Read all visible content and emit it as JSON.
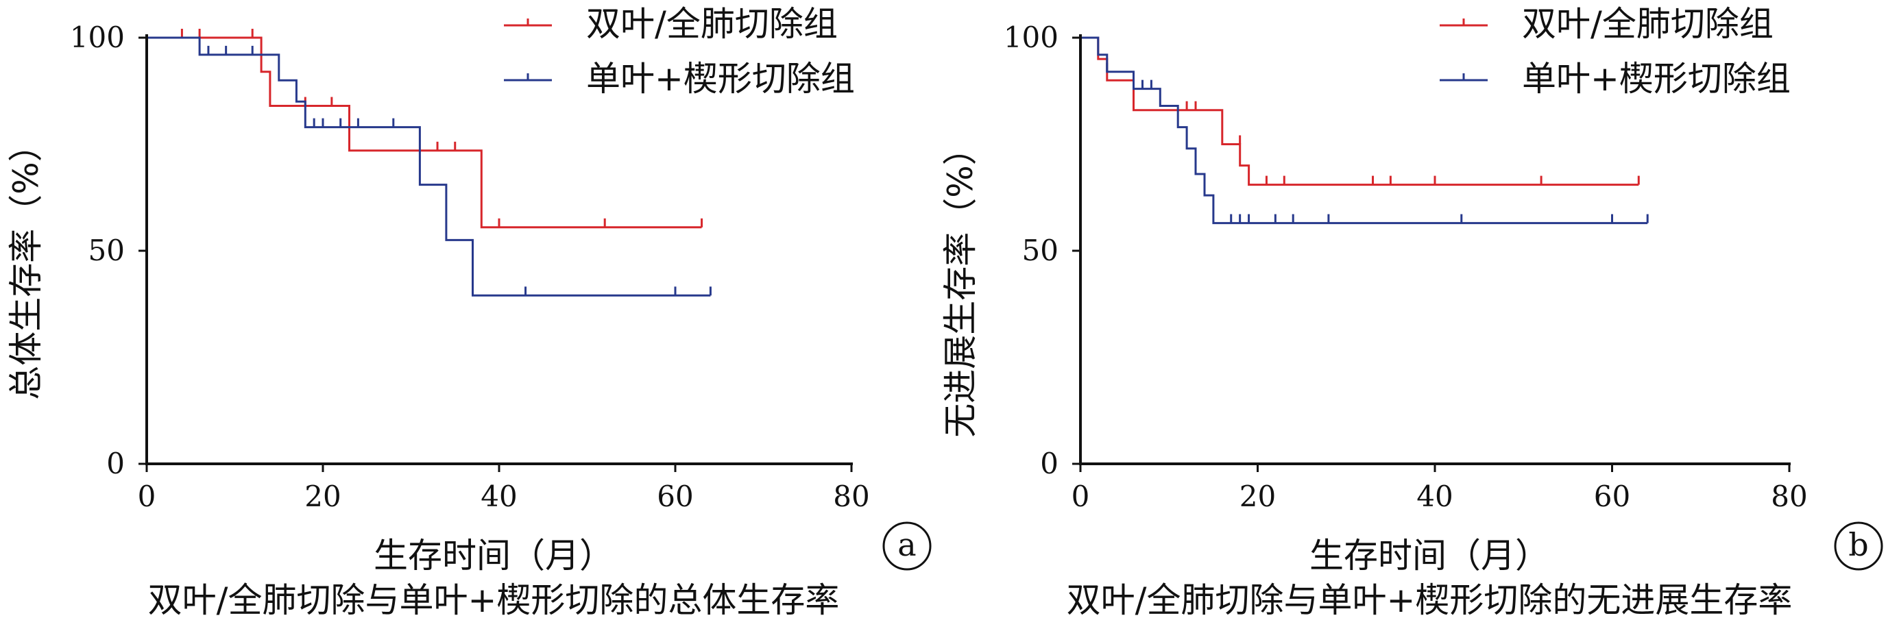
{
  "colors": {
    "double": "#d7262b",
    "single": "#27398c",
    "axis": "#111111"
  },
  "chart_data": [
    {
      "type": "line",
      "step": true,
      "panel": "a",
      "caption": "双叶/全肺切除与单叶+楔形切除的总体生存率",
      "xlabel": "生存时间（月）",
      "ylabel": "总体生存率（%）",
      "xlim": [
        0,
        80
      ],
      "ylim": [
        0,
        100
      ],
      "xticks": [
        "0",
        "20",
        "40",
        "60",
        "80"
      ],
      "yticks": [
        "0",
        "50",
        "100"
      ],
      "legend_position": "top-right",
      "series": [
        {
          "name": "双叶/全肺切除组",
          "color_key": "double",
          "steps": [
            [
              0,
              100
            ],
            [
              13,
              100
            ],
            [
              13,
              92
            ],
            [
              14,
              92
            ],
            [
              14,
              84
            ],
            [
              23,
              84
            ],
            [
              23,
              73.5
            ],
            [
              38,
              73.5
            ],
            [
              38,
              55.5
            ],
            [
              63,
              55.5
            ]
          ],
          "censored": [
            [
              4,
              100
            ],
            [
              6,
              100
            ],
            [
              12,
              100
            ],
            [
              18,
              84
            ],
            [
              21,
              84
            ],
            [
              33,
              73.5
            ],
            [
              35,
              73.5
            ],
            [
              40,
              55.5
            ],
            [
              52,
              55.5
            ],
            [
              63,
              55.5
            ]
          ]
        },
        {
          "name": "单叶+楔形切除组",
          "color_key": "single",
          "steps": [
            [
              0,
              100
            ],
            [
              6,
              100
            ],
            [
              6,
              96
            ],
            [
              15,
              96
            ],
            [
              15,
              90
            ],
            [
              17,
              90
            ],
            [
              17,
              85
            ],
            [
              18,
              85
            ],
            [
              18,
              79
            ],
            [
              31,
              79
            ],
            [
              31,
              65.5
            ],
            [
              34,
              65.5
            ],
            [
              34,
              52.5
            ],
            [
              37,
              52.5
            ],
            [
              37,
              39.5
            ],
            [
              64,
              39.5
            ]
          ],
          "censored": [
            [
              7,
              96
            ],
            [
              9,
              96
            ],
            [
              12,
              96
            ],
            [
              19,
              79
            ],
            [
              20,
              79
            ],
            [
              22,
              79
            ],
            [
              24,
              79
            ],
            [
              28,
              79
            ],
            [
              43,
              39.5
            ],
            [
              60,
              39.5
            ],
            [
              64,
              39.5
            ]
          ]
        }
      ]
    },
    {
      "type": "line",
      "step": true,
      "panel": "b",
      "caption": "双叶/全肺切除与单叶+楔形切除的无进展生存率",
      "xlabel": "生存时间（月）",
      "ylabel": "无进展生存率（%）",
      "xlim": [
        0,
        80
      ],
      "ylim": [
        0,
        100
      ],
      "xticks": [
        "0",
        "20",
        "40",
        "60",
        "80"
      ],
      "yticks": [
        "0",
        "50",
        "100"
      ],
      "legend_position": "top-right",
      "series": [
        {
          "name": "双叶/全肺切除组",
          "color_key": "double",
          "steps": [
            [
              0,
              100
            ],
            [
              2,
              100
            ],
            [
              2,
              95
            ],
            [
              3,
              95
            ],
            [
              3,
              90
            ],
            [
              6,
              90
            ],
            [
              6,
              83
            ],
            [
              16,
              83
            ],
            [
              16,
              75
            ],
            [
              18,
              75
            ],
            [
              18,
              70
            ],
            [
              19,
              70
            ],
            [
              19,
              65.5
            ],
            [
              63,
              65.5
            ]
          ],
          "censored": [
            [
              12,
              83
            ],
            [
              13,
              83
            ],
            [
              18,
              75
            ],
            [
              21,
              65.5
            ],
            [
              23,
              65.5
            ],
            [
              33,
              65.5
            ],
            [
              35,
              65.5
            ],
            [
              40,
              65.5
            ],
            [
              52,
              65.5
            ],
            [
              63,
              65.5
            ]
          ]
        },
        {
          "name": "单叶+楔形切除组",
          "color_key": "single",
          "steps": [
            [
              0,
              100
            ],
            [
              2,
              100
            ],
            [
              2,
              96
            ],
            [
              3,
              96
            ],
            [
              3,
              92
            ],
            [
              6,
              92
            ],
            [
              6,
              88
            ],
            [
              9,
              88
            ],
            [
              9,
              84
            ],
            [
              11,
              84
            ],
            [
              11,
              79
            ],
            [
              12,
              79
            ],
            [
              12,
              74
            ],
            [
              13,
              74
            ],
            [
              13,
              68
            ],
            [
              14,
              68
            ],
            [
              14,
              63
            ],
            [
              15,
              63
            ],
            [
              15,
              56.5
            ],
            [
              64,
              56.5
            ]
          ],
          "censored": [
            [
              3,
              92
            ],
            [
              7,
              88
            ],
            [
              8,
              88
            ],
            [
              17,
              56.5
            ],
            [
              18,
              56.5
            ],
            [
              19,
              56.5
            ],
            [
              22,
              56.5
            ],
            [
              24,
              56.5
            ],
            [
              28,
              56.5
            ],
            [
              43,
              56.5
            ],
            [
              60,
              56.5
            ],
            [
              64,
              56.5
            ]
          ]
        }
      ]
    }
  ]
}
